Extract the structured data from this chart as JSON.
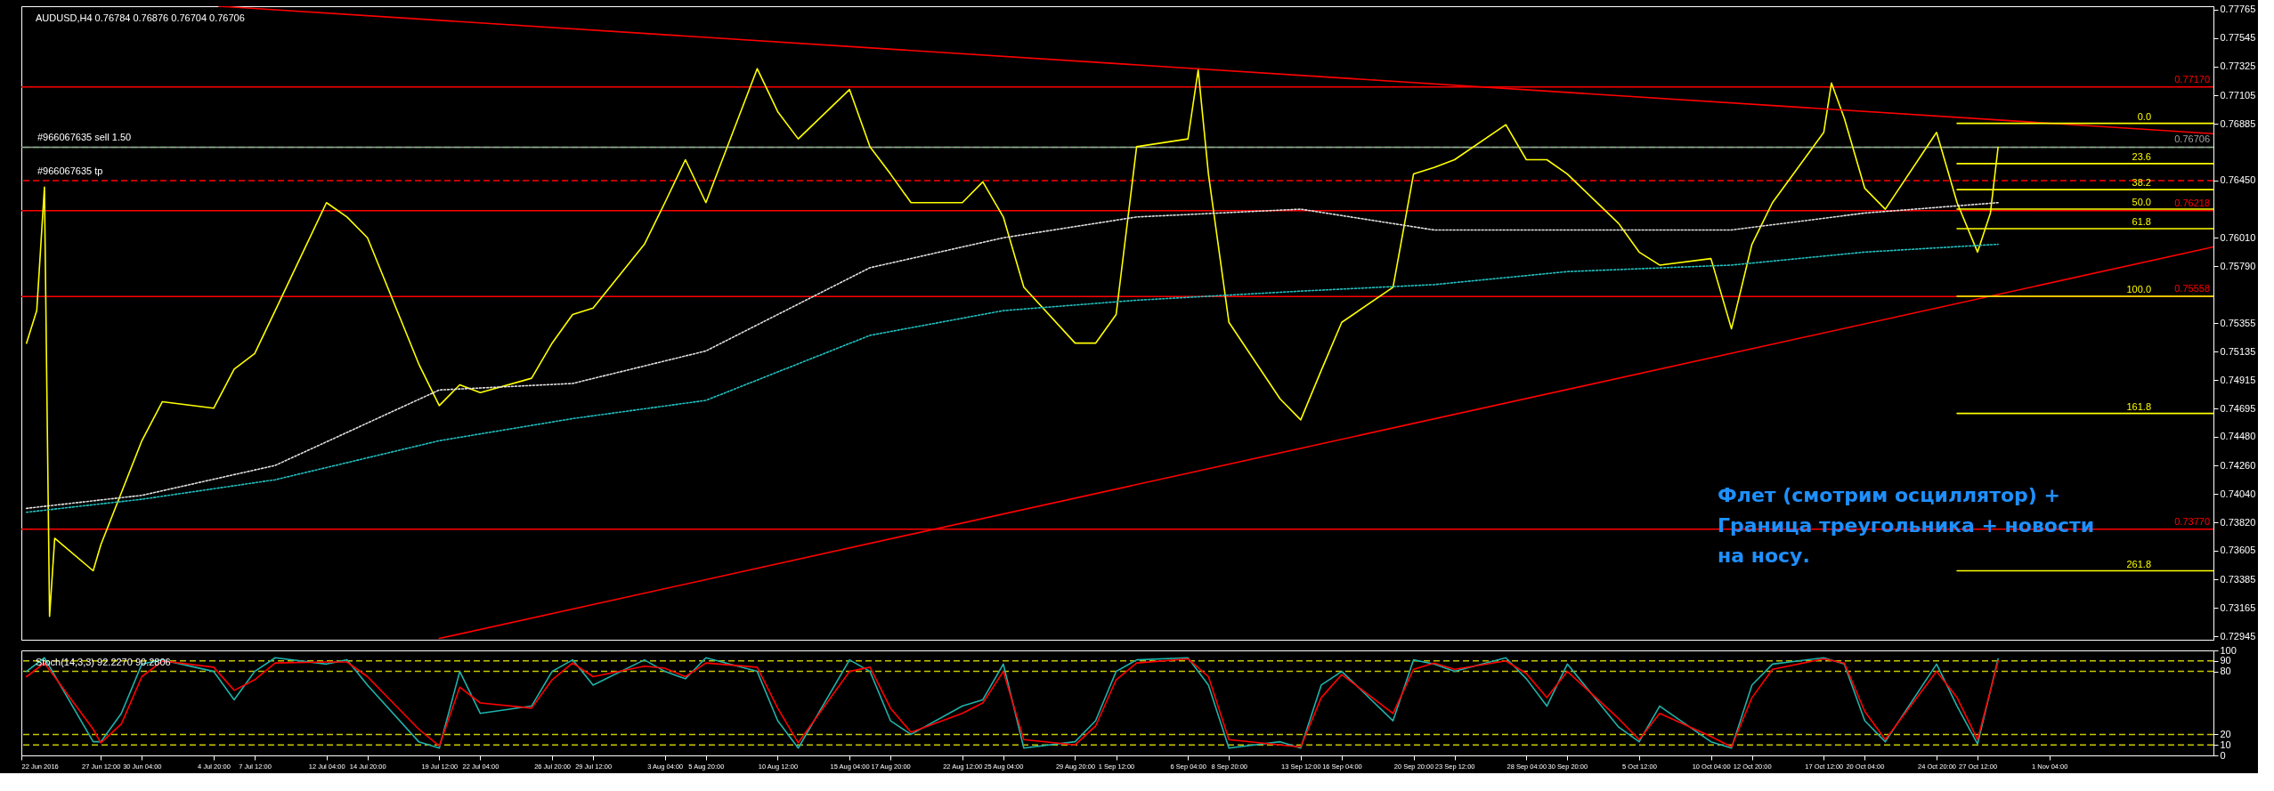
{
  "chart_data": [
    {
      "type": "line",
      "title": "AUDUSD,H4 0.76784 0.76876 0.76704 0.76706",
      "grid": false,
      "tick_labels": "y",
      "x": [
        "2016-06-22T16:00",
        "2016-06-23T08:00",
        "2016-06-23T20:00",
        "2016-06-24T04:00",
        "2016-06-24T12:00",
        "2016-06-27T00:00",
        "2016-06-27T12:00",
        "2016-06-28T20:00",
        "2016-06-30T04:00",
        "2016-07-01T12:00",
        "2016-07-04T20:00",
        "2016-07-06T04:00",
        "2016-07-07T12:00",
        "2016-07-08T20:00",
        "2016-07-12T04:00",
        "2016-07-13T12:00",
        "2016-07-14T20:00",
        "2016-07-18T04:00",
        "2016-07-19T12:00",
        "2016-07-20T20:00",
        "2016-07-22T04:00",
        "2016-07-25T12:00",
        "2016-07-26T20:00",
        "2016-07-28T04:00",
        "2016-07-29T12:00",
        "2016-08-01T20:00",
        "2016-08-03T04:00",
        "2016-08-04T12:00",
        "2016-08-05T20:00",
        "2016-08-09T04:00",
        "2016-08-10T12:00",
        "2016-08-11T20:00",
        "2016-08-15T04:00",
        "2016-08-16T12:00",
        "2016-08-17T20:00",
        "2016-08-19T04:00",
        "2016-08-22T12:00",
        "2016-08-23T20:00",
        "2016-08-25T04:00",
        "2016-08-26T12:00",
        "2016-08-29T20:00",
        "2016-08-31T04:00",
        "2016-09-01T12:00",
        "2016-09-02T20:00",
        "2016-09-06T04:00",
        "2016-09-06T20:00",
        "2016-09-07T12:00",
        "2016-09-08T20:00",
        "2016-09-12T04:00",
        "2016-09-13T12:00",
        "2016-09-14T20:00",
        "2016-09-16T04:00",
        "2016-09-19T12:00",
        "2016-09-20T20:00",
        "2016-09-22T04:00",
        "2016-09-23T12:00",
        "2016-09-26T20:00",
        "2016-09-28T04:00",
        "2016-09-29T12:00",
        "2016-09-30T20:00",
        "2016-10-04T04:00",
        "2016-10-05T12:00",
        "2016-10-06T20:00",
        "2016-10-10T04:00",
        "2016-10-11T12:00",
        "2016-10-12T20:00",
        "2016-10-14T04:00",
        "2016-10-17T12:00",
        "2016-10-18T00:00",
        "2016-10-18T20:00",
        "2016-10-20T04:00",
        "2016-10-21T12:00",
        "2016-10-24T20:00",
        "2016-10-26T04:00",
        "2016-10-27T12:00",
        "2016-10-28T08:00",
        "2016-10-28T20:00"
      ],
      "xlim": [
        "2016-06-22T08:00",
        "2016-11-11T20:00"
      ],
      "ylim": [
        0.7292,
        0.7779
      ],
      "yticks": [
        0.77765,
        0.77545,
        0.77325,
        0.77105,
        0.76885,
        {
          "value": 0.7645,
          "label": "0.76450"
        },
        {
          "value": 0.7601,
          "label": "0.76010"
        },
        {
          "value": 0.7579,
          "label": "0.75790"
        },
        0.75355,
        0.75135,
        0.74915,
        0.74695,
        {
          "value": 0.7448,
          "label": "0.74480"
        },
        {
          "value": 0.7426,
          "label": "0.74260"
        },
        {
          "value": 0.7404,
          "label": "0.74040"
        },
        {
          "value": 0.7382,
          "label": "0.73820"
        },
        0.73605,
        0.73385,
        0.73165,
        0.72945
      ],
      "series": [
        {
          "color": "#ffff00",
          "line_style": "solid",
          "values": [
            0.752,
            0.7545,
            0.764,
            0.731,
            0.737,
            0.7345,
            0.7365,
            0.7405,
            0.7445,
            0.7475,
            0.747,
            0.75,
            0.7512,
            0.7545,
            0.7628,
            0.7617,
            0.7601,
            0.7504,
            0.7472,
            0.7488,
            0.7482,
            0.7493,
            0.752,
            0.7542,
            0.7547,
            0.7596,
            0.7628,
            0.7661,
            0.7628,
            0.7731,
            0.7698,
            0.7677,
            0.7715,
            0.7671,
            0.765,
            0.7628,
            0.7628,
            0.7644,
            0.7617,
            0.7563,
            0.752,
            0.752,
            0.7542,
            0.7671,
            0.7677,
            0.773,
            0.765,
            0.7536,
            0.7477,
            0.7461,
            0.7499,
            0.7536,
            0.7563,
            0.765,
            0.7655,
            0.7661,
            0.7688,
            0.7661,
            0.7661,
            0.765,
            0.7612,
            0.759,
            0.758,
            0.7585,
            0.7531,
            0.7596,
            0.7628,
            0.7682,
            0.772,
            0.7693,
            0.7639,
            0.7623,
            0.7682,
            0.7628,
            0.759,
            0.762,
            0.76706
          ]
        },
        {
          "color": "#e0e0e0",
          "line_style": "dotted",
          "x": [
            "2016-06-22T16:00",
            "2016-06-30T04:00",
            "2016-07-08T20:00",
            "2016-07-19T12:00",
            "2016-07-28T04:00",
            "2016-08-05T20:00",
            "2016-08-16T12:00",
            "2016-08-25T04:00",
            "2016-09-02T20:00",
            "2016-09-13T12:00",
            "2016-09-22T04:00",
            "2016-09-30T20:00",
            "2016-10-11T12:00",
            "2016-10-20T04:00",
            "2016-10-28T20:00"
          ],
          "values": [
            0.7393,
            0.7403,
            0.7426,
            0.7484,
            0.7489,
            0.7514,
            0.7578,
            0.7601,
            0.7617,
            0.7623,
            0.7607,
            0.7607,
            0.7607,
            0.762,
            0.7628
          ]
        },
        {
          "color": "#20c0c0",
          "line_style": "dotted",
          "x": [
            "2016-06-22T16:00",
            "2016-06-30T04:00",
            "2016-07-08T20:00",
            "2016-07-19T12:00",
            "2016-07-28T04:00",
            "2016-08-05T20:00",
            "2016-08-16T12:00",
            "2016-08-25T04:00",
            "2016-09-02T20:00",
            "2016-09-13T12:00",
            "2016-09-22T04:00",
            "2016-09-30T20:00",
            "2016-10-11T12:00",
            "2016-10-20T04:00",
            "2016-10-28T20:00"
          ],
          "values": [
            0.739,
            0.74,
            0.7415,
            0.7445,
            0.7462,
            0.7476,
            0.7526,
            0.7545,
            0.7553,
            0.756,
            0.7565,
            0.7575,
            0.758,
            0.759,
            0.7596
          ]
        },
        {
          "color": "#ff0000",
          "line_style": "solid",
          "x": [
            "2016-07-05T04:00",
            "2016-11-11T20:00"
          ],
          "values": [
            0.7779,
            0.7681
          ]
        },
        {
          "color": "#ff0000",
          "line_style": "solid",
          "x": [
            "2016-07-19T12:00",
            "2016-11-11T20:00"
          ],
          "values": [
            0.7293,
            0.7594
          ]
        },
        {
          "name": "0.0",
          "color": "#ffff00",
          "line_style": "solid",
          "x": [
            "2016-10-26T04:00",
            "2016-11-11T20:00"
          ],
          "values": [
            0.7689,
            0.7689
          ]
        },
        {
          "name": "23.6",
          "color": "#ffff00",
          "line_style": "solid",
          "x": [
            "2016-10-26T04:00",
            "2016-11-11T20:00"
          ],
          "values": [
            0.7658,
            0.7658
          ]
        },
        {
          "name": "38.2",
          "color": "#ffff00",
          "line_style": "solid",
          "x": [
            "2016-10-26T04:00",
            "2016-11-11T20:00"
          ],
          "values": [
            0.7638,
            0.7638
          ]
        },
        {
          "name": "50.0",
          "color": "#ffff00",
          "line_style": "solid",
          "x": [
            "2016-10-26T04:00",
            "2016-11-11T20:00"
          ],
          "values": [
            0.7623,
            0.7623
          ]
        },
        {
          "name": "61.8",
          "color": "#ffff00",
          "line_style": "solid",
          "x": [
            "2016-10-26T04:00",
            "2016-11-11T20:00"
          ],
          "values": [
            0.7608,
            0.7608
          ]
        },
        {
          "name": "100.0",
          "color": "#ffff00",
          "line_style": "solid",
          "x": [
            "2016-10-26T04:00",
            "2016-11-11T20:00"
          ],
          "values": [
            0.7556,
            0.7556
          ]
        },
        {
          "name": "161.8",
          "color": "#ffff00",
          "line_style": "solid",
          "x": [
            "2016-10-26T04:00",
            "2016-11-11T20:00"
          ],
          "values": [
            0.7466,
            0.7466
          ]
        },
        {
          "name": "261.8",
          "color": "#ffff00",
          "line_style": "solid",
          "x": [
            "2016-10-26T04:00",
            "2016-11-11T20:00"
          ],
          "values": [
            0.7345,
            0.7345
          ]
        }
      ],
      "ref_lines": [
        {
          "axis": "y",
          "value": 0.7717,
          "label": "0.77170",
          "color": "#ff0000",
          "line_style": "solid"
        },
        {
          "axis": "y",
          "value": 0.76706,
          "label": "#966067635 sell 1.50",
          "color": "#00c000",
          "line_style": "dashed"
        },
        {
          "axis": "y",
          "value": 0.76706,
          "label": "0.76706",
          "color": "#a0a0a0",
          "line_style": "solid"
        },
        {
          "axis": "y",
          "value": 0.7645,
          "label": "#966067635 tp",
          "color": "#ff0000",
          "line_style": "dashed"
        },
        {
          "axis": "y",
          "value": 0.76218,
          "label": "0.76218",
          "color": "#ff0000",
          "line_style": "solid"
        },
        {
          "axis": "y",
          "value": 0.75558,
          "label": "0.75558",
          "color": "#ff0000",
          "line_style": "solid"
        },
        {
          "axis": "y",
          "value": 0.7377,
          "label": "0.73770",
          "color": "#ff0000",
          "line_style": "solid"
        }
      ],
      "annotations": [
        "Флет (смотрим осциллятор) +\nГраница треугольника + новости\nна носу."
      ]
    },
    {
      "type": "line",
      "title": "Stoch(14,3,3) 92.2270 90.2806",
      "grid": false,
      "x": [
        "2016-06-22T16:00",
        "2016-06-23T20:00",
        "2016-06-27T00:00",
        "2016-06-27T12:00",
        "2016-06-28T20:00",
        "2016-06-30T04:00",
        "2016-07-01T12:00",
        "2016-07-04T20:00",
        "2016-07-06T04:00",
        "2016-07-07T12:00",
        "2016-07-08T20:00",
        "2016-07-12T04:00",
        "2016-07-13T12:00",
        "2016-07-14T20:00",
        "2016-07-18T04:00",
        "2016-07-19T12:00",
        "2016-07-20T20:00",
        "2016-07-22T04:00",
        "2016-07-25T12:00",
        "2016-07-26T20:00",
        "2016-07-28T04:00",
        "2016-07-29T12:00",
        "2016-08-01T20:00",
        "2016-08-03T04:00",
        "2016-08-04T12:00",
        "2016-08-05T20:00",
        "2016-08-09T04:00",
        "2016-08-10T12:00",
        "2016-08-11T20:00",
        "2016-08-15T04:00",
        "2016-08-16T12:00",
        "2016-08-17T20:00",
        "2016-08-19T04:00",
        "2016-08-22T12:00",
        "2016-08-23T20:00",
        "2016-08-25T04:00",
        "2016-08-26T12:00",
        "2016-08-29T20:00",
        "2016-08-31T04:00",
        "2016-09-01T12:00",
        "2016-09-02T20:00",
        "2016-09-06T04:00",
        "2016-09-07T12:00",
        "2016-09-08T20:00",
        "2016-09-12T04:00",
        "2016-09-13T12:00",
        "2016-09-14T20:00",
        "2016-09-16T04:00",
        "2016-09-19T12:00",
        "2016-09-20T20:00",
        "2016-09-22T04:00",
        "2016-09-23T12:00",
        "2016-09-26T20:00",
        "2016-09-28T04:00",
        "2016-09-29T12:00",
        "2016-09-30T20:00",
        "2016-10-04T04:00",
        "2016-10-05T12:00",
        "2016-10-06T20:00",
        "2016-10-10T04:00",
        "2016-10-11T12:00",
        "2016-10-12T20:00",
        "2016-10-14T04:00",
        "2016-10-17T12:00",
        "2016-10-18T20:00",
        "2016-10-20T04:00",
        "2016-10-21T12:00",
        "2016-10-24T20:00",
        "2016-10-26T04:00",
        "2016-10-27T12:00",
        "2016-10-28T20:00"
      ],
      "xlim": [
        "2016-06-22T08:00",
        "2016-11-11T20:00"
      ],
      "xticks": [
        {
          "value": "2016-06-22T08:00",
          "label": "22 Jun 2016"
        },
        {
          "value": "2016-06-27T12:00",
          "label": "27 Jun 12:00"
        },
        {
          "value": "2016-06-30T04:00",
          "label": "30 Jun 04:00"
        },
        {
          "value": "2016-07-04T20:00",
          "label": "4 Jul 20:00"
        },
        {
          "value": "2016-07-07T12:00",
          "label": "7 Jul 12:00"
        },
        {
          "value": "2016-07-12T04:00",
          "label": "12 Jul 04:00"
        },
        {
          "value": "2016-07-14T20:00",
          "label": "14 Jul 20:00"
        },
        {
          "value": "2016-07-19T12:00",
          "label": "19 Jul 12:00"
        },
        {
          "value": "2016-07-22T04:00",
          "label": "22 Jul 04:00"
        },
        {
          "value": "2016-07-26T20:00",
          "label": "26 Jul 20:00"
        },
        {
          "value": "2016-07-29T12:00",
          "label": "29 Jul 12:00"
        },
        {
          "value": "2016-08-03T04:00",
          "label": "3 Aug 04:00"
        },
        {
          "value": "2016-08-05T20:00",
          "label": "5 Aug 20:00"
        },
        {
          "value": "2016-08-10T12:00",
          "label": "10 Aug 12:00"
        },
        {
          "value": "2016-08-15T04:00",
          "label": "15 Aug 04:00"
        },
        {
          "value": "2016-08-17T20:00",
          "label": "17 Aug 20:00"
        },
        {
          "value": "2016-08-22T12:00",
          "label": "22 Aug 12:00"
        },
        {
          "value": "2016-08-25T04:00",
          "label": "25 Aug 04:00"
        },
        {
          "value": "2016-08-29T20:00",
          "label": "29 Aug 20:00"
        },
        {
          "value": "2016-09-01T12:00",
          "label": "1 Sep 12:00"
        },
        {
          "value": "2016-09-06T04:00",
          "label": "6 Sep 04:00"
        },
        {
          "value": "2016-09-08T20:00",
          "label": "8 Sep 20:00"
        },
        {
          "value": "2016-09-13T12:00",
          "label": "13 Sep 12:00"
        },
        {
          "value": "2016-09-16T04:00",
          "label": "16 Sep 04:00"
        },
        {
          "value": "2016-09-20T20:00",
          "label": "20 Sep 20:00"
        },
        {
          "value": "2016-09-23T12:00",
          "label": "23 Sep 12:00"
        },
        {
          "value": "2016-09-28T04:00",
          "label": "28 Sep 04:00"
        },
        {
          "value": "2016-09-30T20:00",
          "label": "30 Sep 20:00"
        },
        {
          "value": "2016-10-05T12:00",
          "label": "5 Oct 12:00"
        },
        {
          "value": "2016-10-10T04:00",
          "label": "10 Oct 04:00"
        },
        {
          "value": "2016-10-12T20:00",
          "label": "12 Oct 20:00"
        },
        {
          "value": "2016-10-17T12:00",
          "label": "17 Oct 12:00"
        },
        {
          "value": "2016-10-20T04:00",
          "label": "20 Oct 04:00"
        },
        {
          "value": "2016-10-24T20:00",
          "label": "24 Oct 20:00"
        },
        {
          "value": "2016-10-27T12:00",
          "label": "27 Oct 12:00"
        },
        {
          "value": "2016-11-01T04:00",
          "label": "1 Nov 04:00"
        }
      ],
      "ylim": [
        0,
        100
      ],
      "yticks": [
        0,
        10,
        20,
        80,
        90,
        100
      ],
      "series": [
        {
          "color": "#20b2aa",
          "line_style": "solid",
          "values": [
            80,
            93,
            13,
            13,
            40,
            87,
            91,
            80,
            53,
            80,
            93,
            87,
            91,
            67,
            13,
            7,
            80,
            40,
            47,
            80,
            91,
            67,
            91,
            80,
            73,
            93,
            80,
            33,
            7,
            91,
            80,
            33,
            20,
            47,
            53,
            87,
            7,
            13,
            33,
            80,
            91,
            93,
            67,
            7,
            13,
            7,
            67,
            80,
            33,
            91,
            87,
            80,
            93,
            73,
            47,
            87,
            27,
            13,
            47,
            13,
            7,
            67,
            87,
            93,
            87,
            33,
            13,
            87,
            47,
            11,
            92
          ]
        },
        {
          "color": "#ff0000",
          "line_style": "solid",
          "values": [
            75,
            88,
            25,
            12,
            30,
            75,
            90,
            84,
            62,
            72,
            88,
            89,
            89,
            75,
            25,
            9,
            65,
            50,
            45,
            72,
            88,
            75,
            85,
            83,
            75,
            88,
            84,
            45,
            12,
            80,
            84,
            45,
            22,
            40,
            50,
            80,
            15,
            10,
            28,
            72,
            88,
            92,
            75,
            15,
            10,
            8,
            55,
            77,
            40,
            82,
            88,
            82,
            90,
            78,
            55,
            80,
            35,
            15,
            40,
            18,
            8,
            55,
            82,
            92,
            88,
            42,
            15,
            80,
            55,
            15,
            90
          ]
        }
      ],
      "ref_lines": [
        {
          "axis": "y",
          "value": 90,
          "color": "#c8c800",
          "line_style": "dashed"
        },
        {
          "axis": "y",
          "value": 80,
          "color": "#c8c800",
          "line_style": "dashed"
        },
        {
          "axis": "y",
          "value": 20,
          "color": "#c8c800",
          "line_style": "dashed"
        },
        {
          "axis": "y",
          "value": 10,
          "color": "#c8c800",
          "line_style": "dashed"
        }
      ]
    }
  ]
}
